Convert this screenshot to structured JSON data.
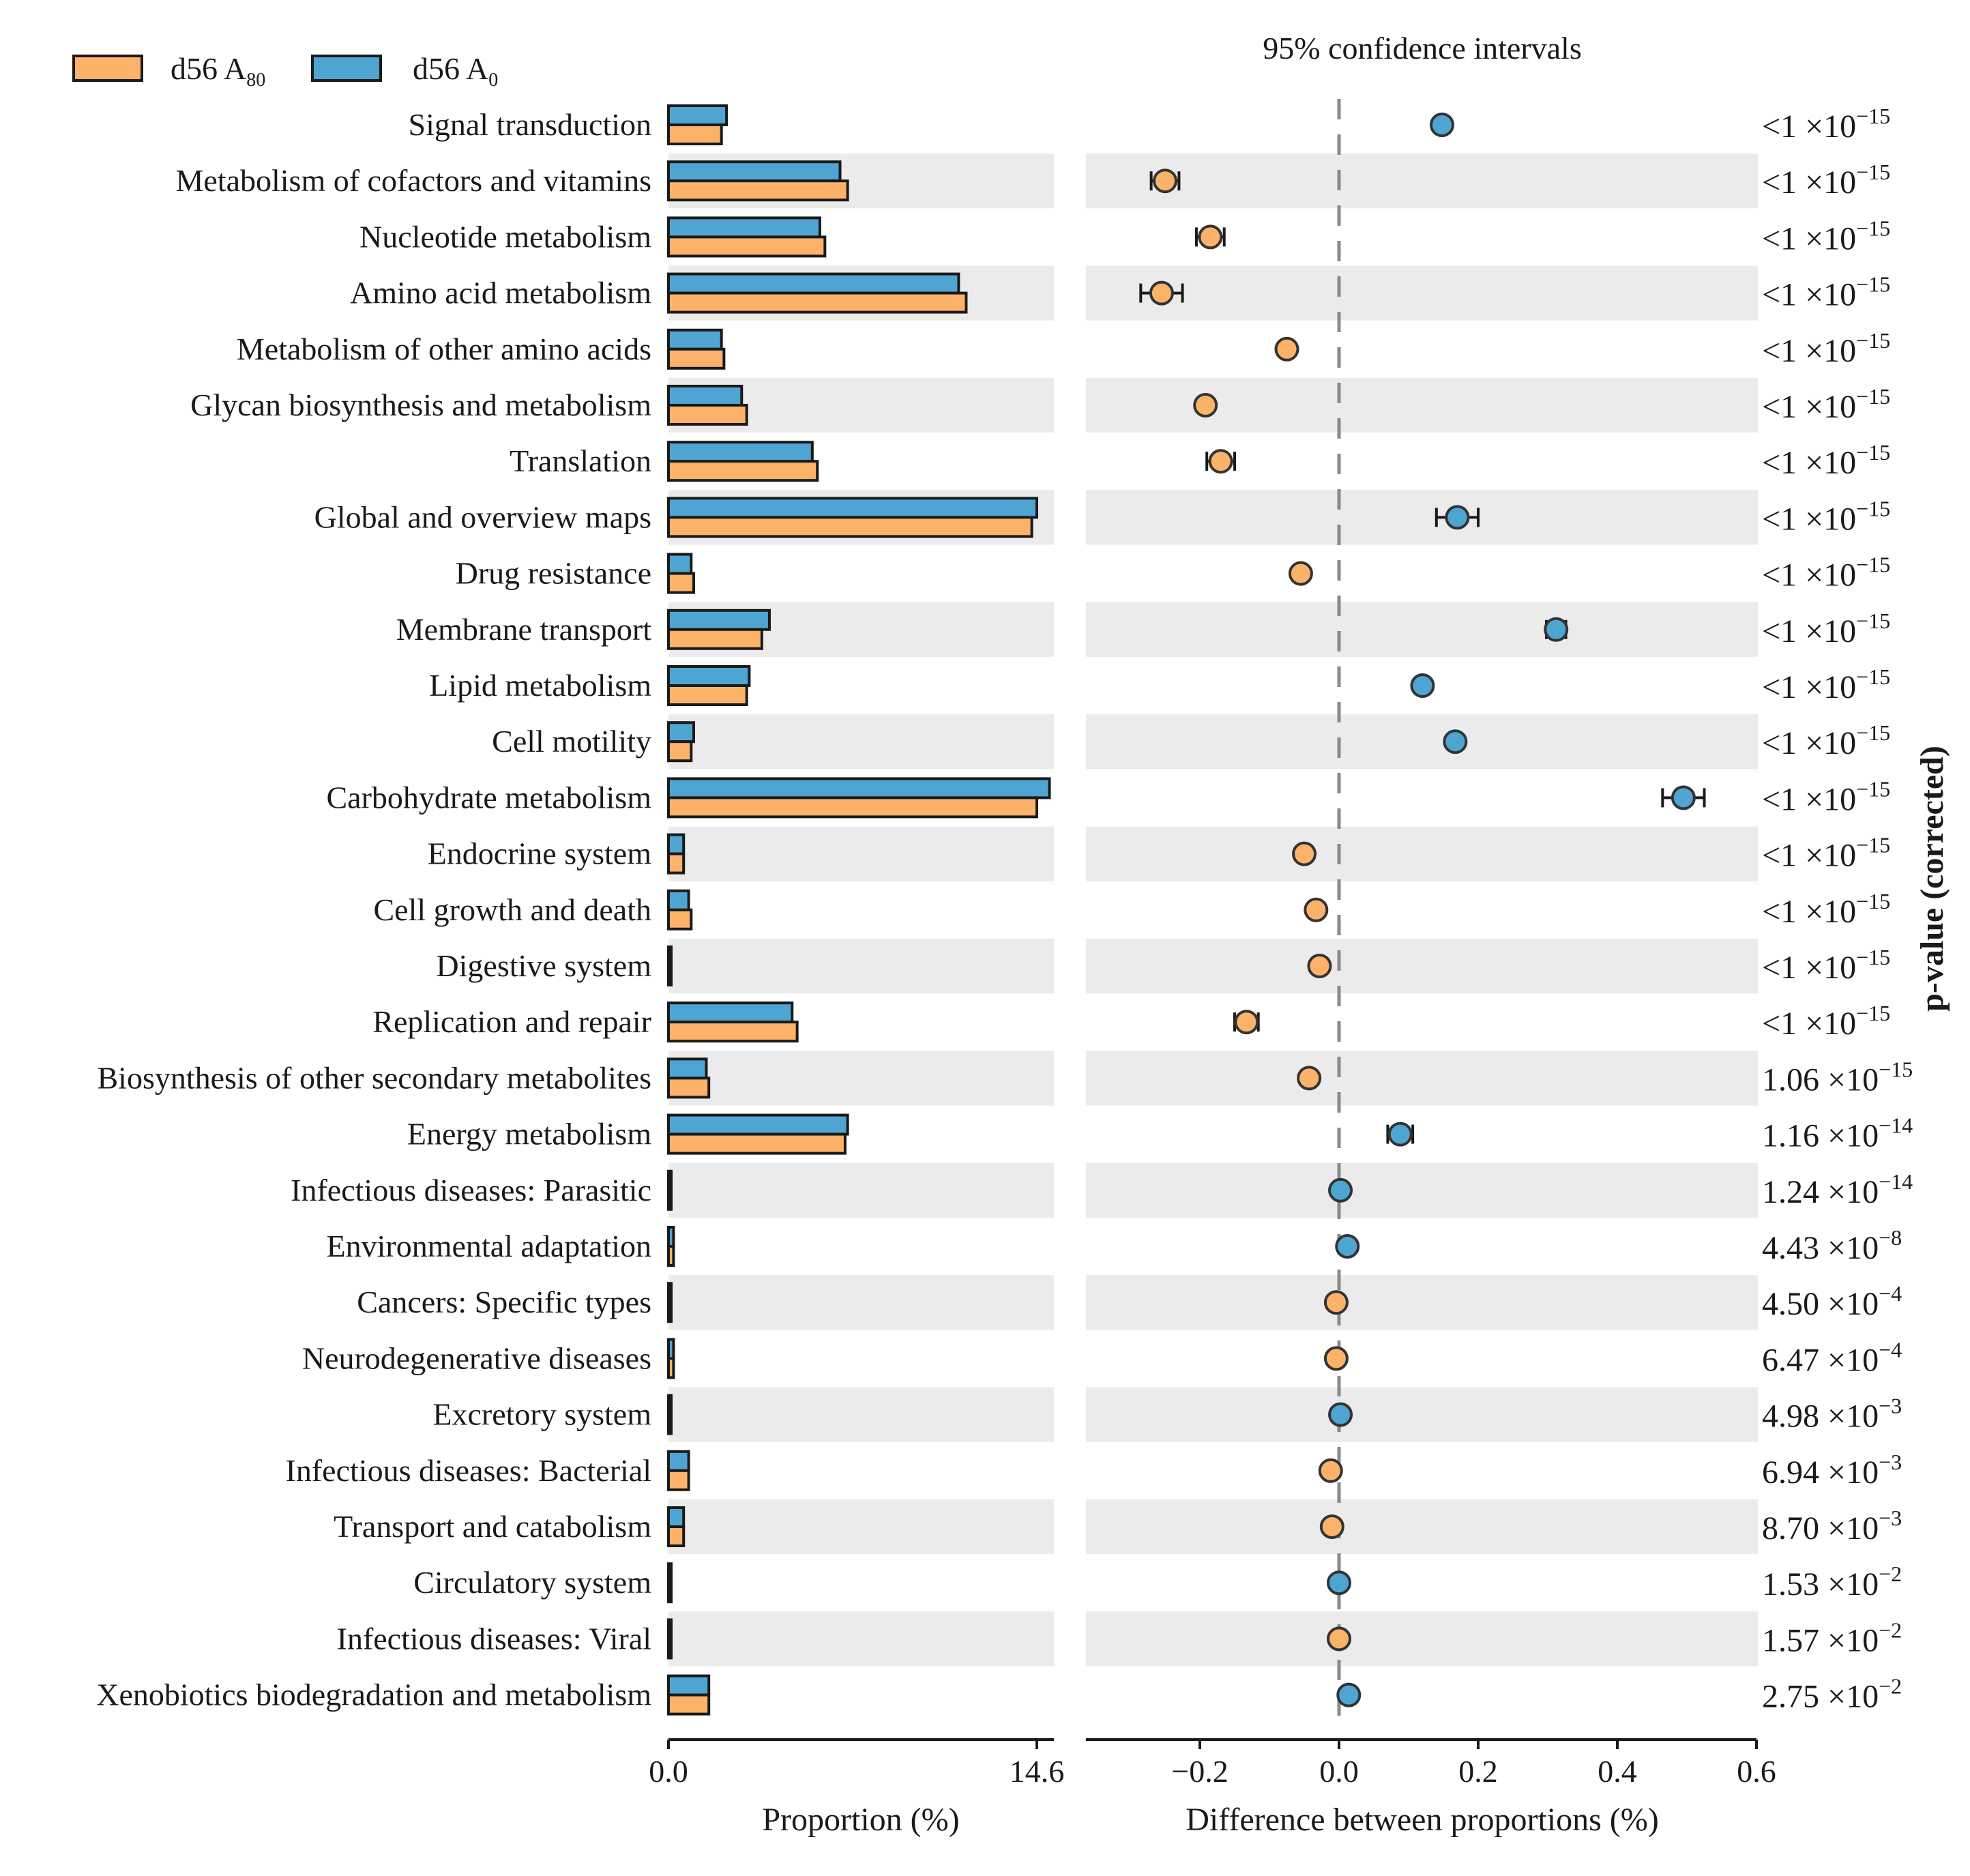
{
  "chart_data": {
    "type": "extended-error-bar",
    "title": "95% confidence intervals",
    "legend": {
      "placement": "top-left",
      "entries": [
        {
          "name": "d56 A",
          "subscript": "80",
          "color": "#FDB26A"
        },
        {
          "name": "d56 A",
          "subscript": "0",
          "color": "#4FA5D2"
        }
      ]
    },
    "colors": {
      "a80": "#FDB26A",
      "a0": "#4FA5D2",
      "stripe": "#EBEBEB",
      "stroke": "#1a1a1a",
      "dashed": "#8a8a8a"
    },
    "proportion_axis": {
      "label": "Proportion (%)",
      "range": [
        0,
        14.6
      ],
      "ticks": [
        "0.0",
        "14.6"
      ]
    },
    "difference_axis": {
      "label": "Difference between proportions (%)",
      "range": [
        -0.36,
        0.6
      ],
      "ticks": [
        -0.2,
        0.0,
        0.2,
        0.4,
        0.6
      ],
      "tick_labels": [
        "−0.2",
        "0.0",
        "0.2",
        "0.4",
        "0.6"
      ]
    },
    "pvalue_label": "p-value (corrected)",
    "categories": [
      "Signal transduction",
      "Metabolism of cofactors and vitamins",
      "Nucleotide metabolism",
      "Amino acid metabolism",
      "Metabolism of other amino acids",
      "Glycan biosynthesis and metabolism",
      "Translation",
      "Global and overview maps",
      "Drug resistance",
      "Membrane transport",
      "Lipid metabolism",
      "Cell motility",
      "Carbohydrate metabolism",
      "Endocrine system",
      "Cell growth and death",
      "Digestive system",
      "Replication and repair",
      "Biosynthesis of other secondary metabolites",
      "Energy metabolism",
      "Infectious diseases: Parasitic",
      "Environmental adaptation",
      "Cancers: Specific types",
      "Neurodegenerative diseases",
      "Excretory system",
      "Infectious diseases: Bacterial",
      "Transport and catabolism",
      "Circulatory system",
      "Infectious diseases: Viral",
      "Xenobiotics biodegradation and metabolism"
    ],
    "series": [
      {
        "name": "d56 A80",
        "values": [
          2.1,
          7.1,
          6.2,
          11.8,
          2.2,
          3.1,
          5.9,
          14.4,
          1.0,
          3.7,
          3.1,
          0.9,
          14.6,
          0.6,
          0.9,
          0.1,
          5.1,
          1.6,
          7.0,
          0.05,
          0.2,
          0.1,
          0.2,
          0.05,
          0.8,
          0.6,
          0.05,
          0.05,
          1.6
        ]
      },
      {
        "name": "d56 A0",
        "values": [
          2.3,
          6.8,
          6.0,
          11.5,
          2.1,
          2.9,
          5.7,
          14.6,
          0.9,
          4.0,
          3.2,
          1.0,
          15.1,
          0.6,
          0.8,
          0.1,
          4.9,
          1.5,
          7.1,
          0.05,
          0.2,
          0.1,
          0.2,
          0.05,
          0.8,
          0.6,
          0.05,
          0.05,
          1.6
        ]
      }
    ],
    "differences": [
      {
        "value": 0.148,
        "ci": [
          0.14,
          0.156
        ],
        "favors": "a0"
      },
      {
        "value": -0.25,
        "ci": [
          -0.27,
          -0.23
        ],
        "favors": "a80"
      },
      {
        "value": -0.185,
        "ci": [
          -0.205,
          -0.165
        ],
        "favors": "a80"
      },
      {
        "value": -0.255,
        "ci": [
          -0.285,
          -0.225
        ],
        "favors": "a80"
      },
      {
        "value": -0.075,
        "ci": [
          -0.082,
          -0.068
        ],
        "favors": "a80"
      },
      {
        "value": -0.192,
        "ci": [
          -0.2,
          -0.184
        ],
        "favors": "a80"
      },
      {
        "value": -0.17,
        "ci": [
          -0.19,
          -0.15
        ],
        "favors": "a80"
      },
      {
        "value": 0.17,
        "ci": [
          0.14,
          0.2
        ],
        "favors": "a0"
      },
      {
        "value": -0.055,
        "ci": [
          -0.062,
          -0.048
        ],
        "favors": "a80"
      },
      {
        "value": 0.312,
        "ci": [
          0.298,
          0.326
        ],
        "favors": "a0"
      },
      {
        "value": 0.12,
        "ci": [
          0.112,
          0.128
        ],
        "favors": "a0"
      },
      {
        "value": 0.167,
        "ci": [
          0.16,
          0.174
        ],
        "favors": "a0"
      },
      {
        "value": 0.495,
        "ci": [
          0.465,
          0.525
        ],
        "favors": "a0"
      },
      {
        "value": -0.05,
        "ci": [
          -0.056,
          -0.044
        ],
        "favors": "a80"
      },
      {
        "value": -0.033,
        "ci": [
          -0.039,
          -0.027
        ],
        "favors": "a80"
      },
      {
        "value": -0.028,
        "ci": [
          -0.034,
          -0.022
        ],
        "favors": "a80"
      },
      {
        "value": -0.133,
        "ci": [
          -0.15,
          -0.116
        ],
        "favors": "a80"
      },
      {
        "value": -0.043,
        "ci": [
          -0.049,
          -0.037
        ],
        "favors": "a80"
      },
      {
        "value": 0.088,
        "ci": [
          0.07,
          0.106
        ],
        "favors": "a0"
      },
      {
        "value": 0.002,
        "ci": [
          -0.002,
          0.006
        ],
        "favors": "a0"
      },
      {
        "value": 0.012,
        "ci": [
          0.008,
          0.016
        ],
        "favors": "a0"
      },
      {
        "value": -0.004,
        "ci": [
          -0.008,
          0.0
        ],
        "favors": "a80"
      },
      {
        "value": -0.004,
        "ci": [
          -0.008,
          0.0
        ],
        "favors": "a80"
      },
      {
        "value": 0.002,
        "ci": [
          -0.002,
          0.006
        ],
        "favors": "a0"
      },
      {
        "value": -0.012,
        "ci": [
          -0.016,
          -0.008
        ],
        "favors": "a80"
      },
      {
        "value": -0.01,
        "ci": [
          -0.014,
          -0.006
        ],
        "favors": "a80"
      },
      {
        "value": 0.0,
        "ci": [
          -0.004,
          0.004
        ],
        "favors": "a0"
      },
      {
        "value": 0.0,
        "ci": [
          -0.004,
          0.004
        ],
        "favors": "a80"
      },
      {
        "value": 0.014,
        "ci": [
          0.01,
          0.018
        ],
        "favors": "a0"
      }
    ],
    "p_values": [
      {
        "mantissa": "<1",
        "exponent": "−15"
      },
      {
        "mantissa": "<1",
        "exponent": "−15"
      },
      {
        "mantissa": "<1",
        "exponent": "−15"
      },
      {
        "mantissa": "<1",
        "exponent": "−15"
      },
      {
        "mantissa": "<1",
        "exponent": "−15"
      },
      {
        "mantissa": "<1",
        "exponent": "−15"
      },
      {
        "mantissa": "<1",
        "exponent": "−15"
      },
      {
        "mantissa": "<1",
        "exponent": "−15"
      },
      {
        "mantissa": "<1",
        "exponent": "−15"
      },
      {
        "mantissa": "<1",
        "exponent": "−15"
      },
      {
        "mantissa": "<1",
        "exponent": "−15"
      },
      {
        "mantissa": "<1",
        "exponent": "−15"
      },
      {
        "mantissa": "<1",
        "exponent": "−15"
      },
      {
        "mantissa": "<1",
        "exponent": "−15"
      },
      {
        "mantissa": "<1",
        "exponent": "−15"
      },
      {
        "mantissa": "<1",
        "exponent": "−15"
      },
      {
        "mantissa": "<1",
        "exponent": "−15"
      },
      {
        "mantissa": "1.06",
        "exponent": "−15"
      },
      {
        "mantissa": "1.16",
        "exponent": "−14"
      },
      {
        "mantissa": "1.24",
        "exponent": "−14"
      },
      {
        "mantissa": "4.43",
        "exponent": "−8"
      },
      {
        "mantissa": "4.50",
        "exponent": "−4"
      },
      {
        "mantissa": "6.47",
        "exponent": "−4"
      },
      {
        "mantissa": "4.98",
        "exponent": "−3"
      },
      {
        "mantissa": "6.94",
        "exponent": "−3"
      },
      {
        "mantissa": "8.70",
        "exponent": "−3"
      },
      {
        "mantissa": "1.53",
        "exponent": "−2"
      },
      {
        "mantissa": "1.57",
        "exponent": "−2"
      },
      {
        "mantissa": "2.75",
        "exponent": "−2"
      }
    ]
  }
}
